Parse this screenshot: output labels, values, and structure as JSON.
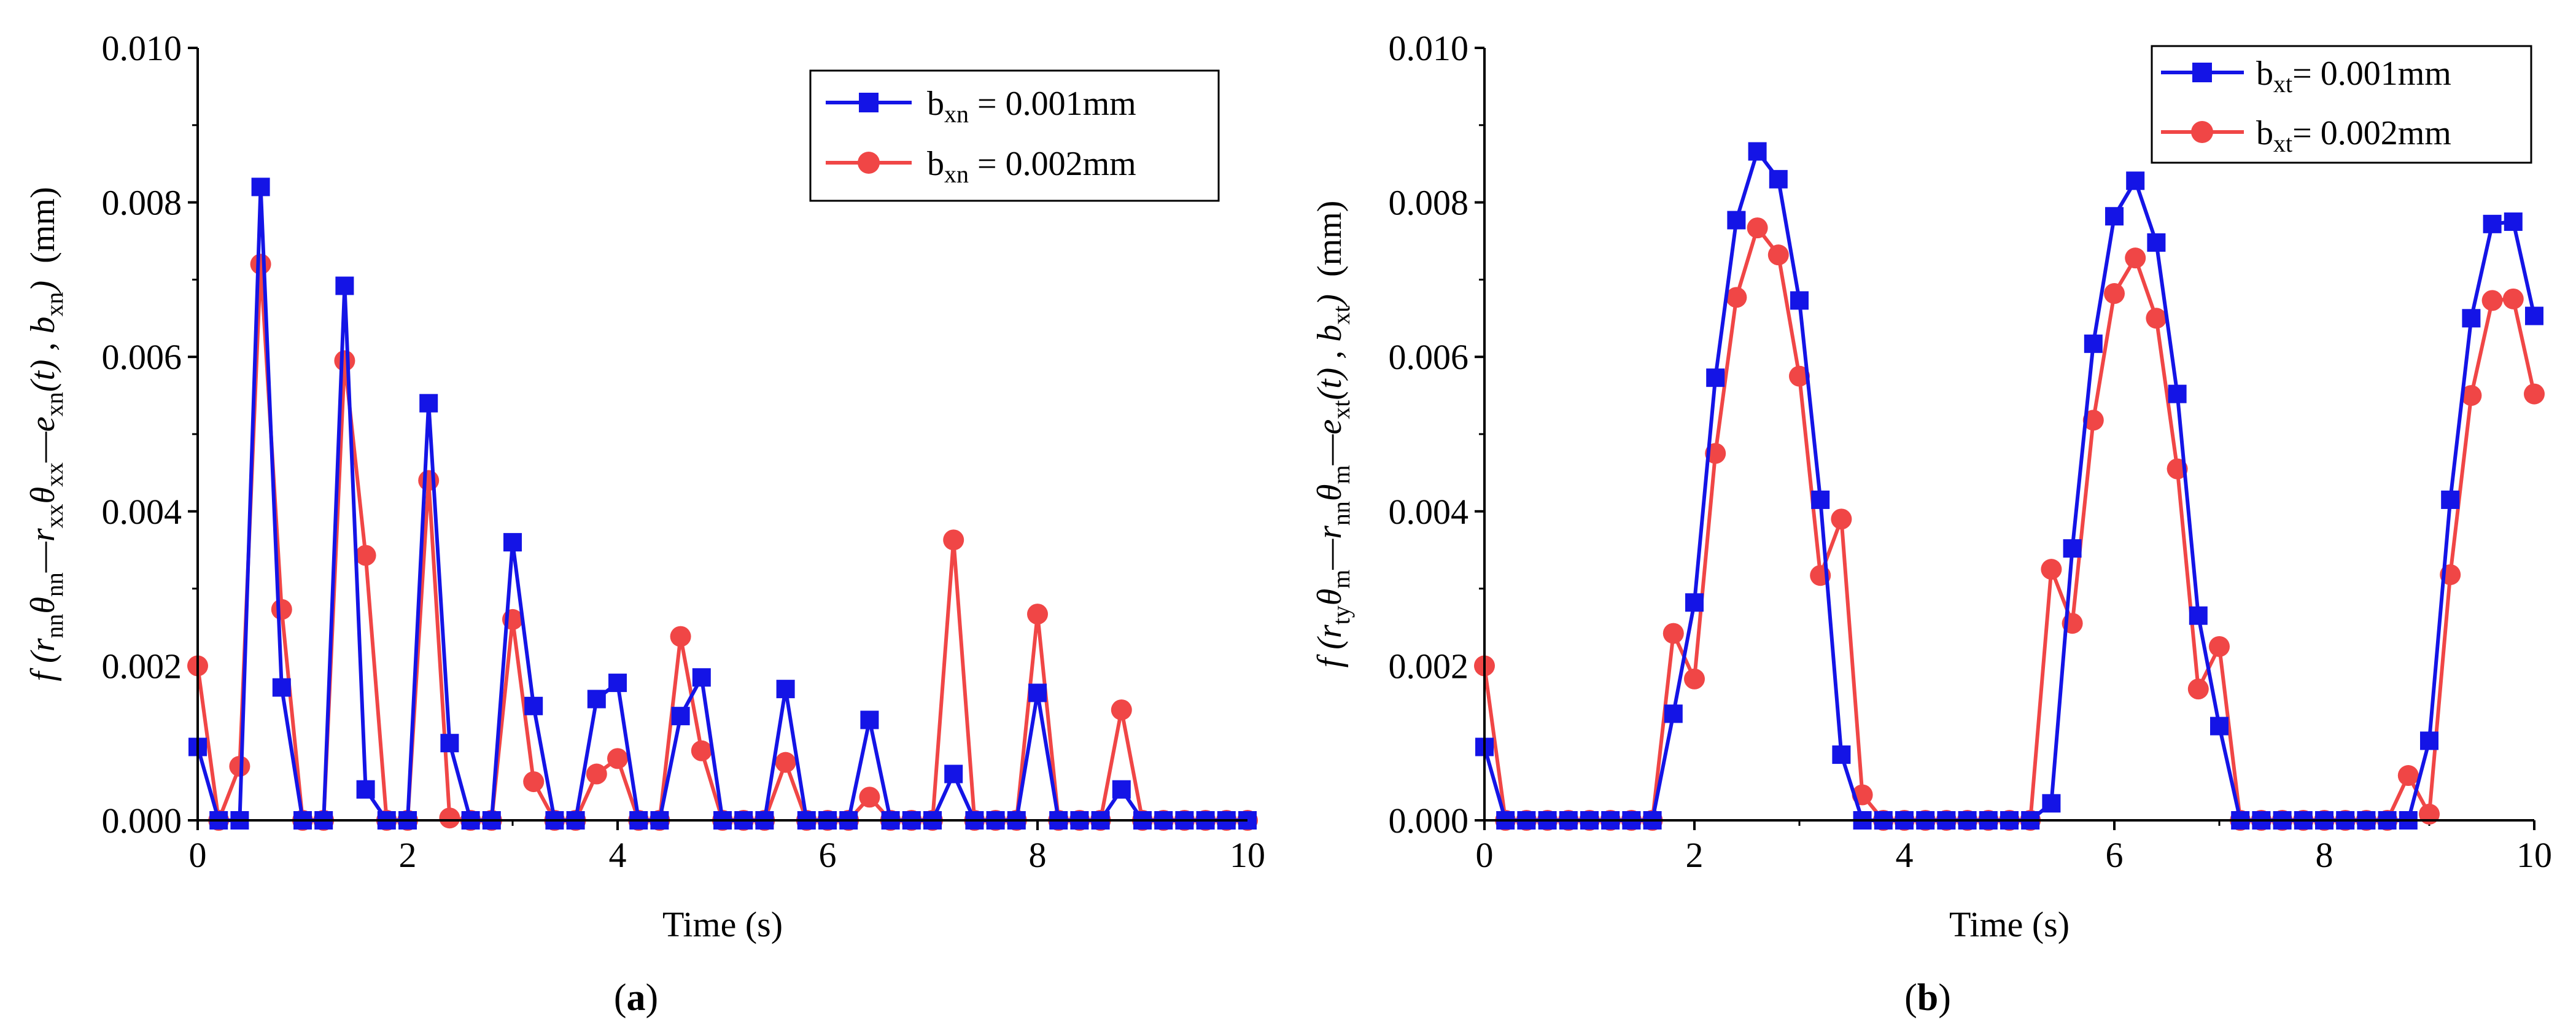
{
  "figure": {
    "panels": [
      {
        "caption_open": "(",
        "caption_letter": "a",
        "caption_close": ")"
      },
      {
        "caption_open": "(",
        "caption_letter": "b",
        "caption_close": ")"
      }
    ]
  },
  "chart_data": [
    {
      "type": "line",
      "panel": "a",
      "title": "",
      "xlabel": "Time  (s)",
      "ylabel": {
        "prefix": "f (r",
        "sub1": "nn",
        "t1": "θ",
        "sub2": "nn",
        "t2": "—r",
        "sub3": "xx",
        "t3": "θ",
        "sub4": "xx",
        "t4": "—e",
        "sub5": "xn",
        "t5": "(t) , b",
        "sub6": "xn",
        "t6": ")",
        "unit": "(mm)"
      },
      "xlim": [
        0,
        10
      ],
      "ylim": [
        0,
        0.01
      ],
      "xticks": [
        "0",
        "2",
        "4",
        "6",
        "8",
        "10"
      ],
      "yticks": [
        "0.000",
        "0.002",
        "0.004",
        "0.006",
        "0.008",
        "0.010"
      ],
      "legend_position": "top-right",
      "x": [
        0,
        0.2,
        0.4,
        0.6,
        0.8,
        1.0,
        1.2,
        1.4,
        1.6,
        1.8,
        2.0,
        2.2,
        2.4,
        2.6,
        2.8,
        3.0,
        3.2,
        3.4,
        3.6,
        3.8,
        4.0,
        4.2,
        4.4,
        4.6,
        4.8,
        5.0,
        5.2,
        5.4,
        5.6,
        5.8,
        6.0,
        6.2,
        6.4,
        6.6,
        6.8,
        7.0,
        7.2,
        7.4,
        7.6,
        7.8,
        8.0,
        8.2,
        8.4,
        8.6,
        8.8,
        9.0,
        9.2,
        9.4,
        9.6,
        9.8,
        10.0
      ],
      "series": [
        {
          "name_base": "b",
          "name_sub": "xn",
          "name_rest": " = 0.001mm",
          "color": "#1414e6",
          "marker": "square",
          "values": [
            0.00095,
            0.0,
            0.0,
            0.0082,
            0.00172,
            0.0,
            0.0,
            0.00692,
            0.0004,
            0.0,
            0.0,
            0.0054,
            0.001,
            0.0,
            0.0,
            0.0036,
            0.00148,
            0.0,
            0.0,
            0.00157,
            0.00178,
            0.0,
            0.0,
            0.00135,
            0.00185,
            0.0,
            0.0,
            0.0,
            0.0017,
            0.0,
            0.0,
            0.0,
            0.0013,
            0.0,
            0.0,
            0.0,
            0.0006,
            0.0,
            0.0,
            0.0,
            0.00165,
            0.0,
            0.0,
            0.0,
            0.0004,
            0.0,
            0.0,
            0.0,
            0.0,
            0.0,
            0.0
          ]
        },
        {
          "name_base": "b",
          "name_sub": "xn",
          "name_rest": " = 0.002mm",
          "color": "#f04646",
          "marker": "circle",
          "values": [
            0.002,
            0.0,
            0.0007,
            0.0072,
            0.00273,
            0.0,
            0.0,
            0.00595,
            0.00343,
            0.0,
            0.0,
            0.0044,
            3e-05,
            0.0,
            0.0,
            0.0026,
            0.0005,
            0.0,
            0.0,
            0.0006,
            0.0008,
            0.0,
            0.0,
            0.00238,
            0.0009,
            0.0,
            0.0,
            0.0,
            0.00075,
            0.0,
            0.0,
            0.0,
            0.0003,
            0.0,
            0.0,
            0.0,
            0.00363,
            0.0,
            0.0,
            0.0,
            0.00267,
            0.0,
            0.0,
            0.0,
            0.00143,
            0.0,
            0.0,
            0.0,
            0.0,
            0.0,
            0.0
          ]
        }
      ]
    },
    {
      "type": "line",
      "panel": "b",
      "title": "",
      "xlabel": "Time (s)",
      "ylabel": {
        "prefix": "f (r",
        "sub1": "ty",
        "t1": "θ",
        "sub2": "m",
        "t2": "—r",
        "sub3": "nn",
        "t3": "θ",
        "sub4": "m",
        "t4": "—e",
        "sub5": "xt",
        "t5": "(t) , b",
        "sub6": "xt",
        "t6": ")",
        "unit": "(mm)"
      },
      "xlim": [
        0,
        10
      ],
      "ylim": [
        0,
        0.01
      ],
      "xticks": [
        "0",
        "2",
        "4",
        "6",
        "8",
        "10"
      ],
      "yticks": [
        "0.000",
        "0.002",
        "0.004",
        "0.006",
        "0.008",
        "0.010"
      ],
      "legend_position": "top-right",
      "x": [
        0,
        0.2,
        0.4,
        0.6,
        0.8,
        1.0,
        1.2,
        1.4,
        1.6,
        1.8,
        2.0,
        2.2,
        2.4,
        2.6,
        2.8,
        3.0,
        3.2,
        3.4,
        3.6,
        3.8,
        4.0,
        4.2,
        4.4,
        4.6,
        4.8,
        5.0,
        5.2,
        5.4,
        5.6,
        5.8,
        6.0,
        6.2,
        6.4,
        6.6,
        6.8,
        7.0,
        7.2,
        7.4,
        7.6,
        7.8,
        8.0,
        8.2,
        8.4,
        8.6,
        8.8,
        9.0,
        9.2,
        9.4,
        9.6,
        9.8,
        10.0
      ],
      "series": [
        {
          "name_base": "b",
          "name_sub": "xt",
          "name_rest": "= 0.001mm",
          "color": "#1414e6",
          "marker": "square",
          "values": [
            0.00095,
            0.0,
            0.0,
            0.0,
            0.0,
            0.0,
            0.0,
            0.0,
            0.0,
            0.00138,
            0.00282,
            0.00573,
            0.00777,
            0.00866,
            0.0083,
            0.00673,
            0.00415,
            0.00085,
            0.0,
            0.0,
            0.0,
            0.0,
            0.0,
            0.0,
            0.0,
            0.0,
            0.0,
            0.00022,
            0.00352,
            0.00617,
            0.00782,
            0.00828,
            0.00748,
            0.00552,
            0.00265,
            0.00122,
            0.0,
            0.0,
            0.0,
            0.0,
            0.0,
            0.0,
            0.0,
            0.0,
            0.0,
            0.00103,
            0.00415,
            0.0065,
            0.00772,
            0.00775,
            0.00653
          ]
        },
        {
          "name_base": "b",
          "name_sub": "xt",
          "name_rest": "= 0.002mm",
          "color": "#f04646",
          "marker": "circle",
          "values": [
            0.002,
            0.0,
            0.0,
            0.0,
            0.0,
            0.0,
            0.0,
            0.0,
            0.0,
            0.00242,
            0.00183,
            0.00475,
            0.00677,
            0.00767,
            0.00732,
            0.00575,
            0.00317,
            0.0039,
            0.00033,
            0.0,
            0.0,
            0.0,
            0.0,
            0.0,
            0.0,
            0.0,
            0.0,
            0.00325,
            0.00255,
            0.00518,
            0.00682,
            0.00728,
            0.0065,
            0.00455,
            0.0017,
            0.00225,
            0.0,
            0.0,
            0.0,
            0.0,
            0.0,
            0.0,
            0.0,
            0.0,
            0.00058,
            8e-05,
            0.00318,
            0.0055,
            0.00673,
            0.00675,
            0.00552
          ]
        }
      ]
    }
  ]
}
